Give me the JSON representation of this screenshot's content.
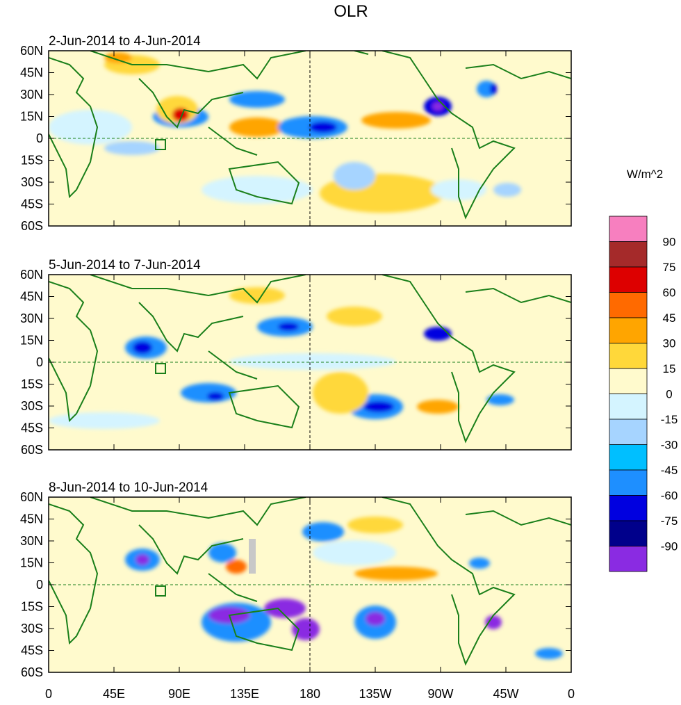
{
  "figure": {
    "title": "OLR",
    "units_label": "W/m^2"
  },
  "panels": [
    {
      "period": "2-Jun-2014 to 4-Jun-2014"
    },
    {
      "period": "5-Jun-2014 to 7-Jun-2014"
    },
    {
      "period": "8-Jun-2014 to 10-Jun-2014"
    }
  ],
  "axes": {
    "lat_labels": [
      "60N",
      "45N",
      "30N",
      "15N",
      "0",
      "15S",
      "30S",
      "45S",
      "60S"
    ],
    "lon_labels": [
      "0",
      "45E",
      "90E",
      "135E",
      "180",
      "135W",
      "90W",
      "45W",
      "0"
    ]
  },
  "colorbar": {
    "tick_labels": [
      "90",
      "75",
      "60",
      "45",
      "30",
      "15",
      "0",
      "-15",
      "-30",
      "-45",
      "-60",
      "-75",
      "-90"
    ],
    "colors": [
      "#f77fbf",
      "#a52a2a",
      "#dd0000",
      "#ff6a00",
      "#ffa500",
      "#ffd83a",
      "#fffacd",
      "#d4f4ff",
      "#a6d4ff",
      "#00bfff",
      "#1e8fff",
      "#0000e0",
      "#00008b",
      "#8a2be2"
    ]
  },
  "colors": {
    "coast": "#1a7f1a",
    "grid": "#1a7f1a",
    "background_field": "#fffacd"
  }
}
